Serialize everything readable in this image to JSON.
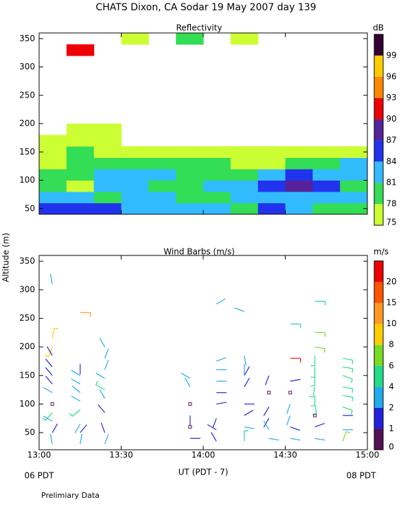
{
  "title": "CHATS Dixon, CA  Sodar  19 May 2007  day 139",
  "ylabel": "Altitude (m)",
  "footnote": "Prelimiary Data",
  "chart_data": [
    {
      "type": "heatmap",
      "title": "Reflectivity",
      "colorbar_label": "dB",
      "x": [
        13.0833,
        13.25,
        13.4167,
        13.5833,
        13.75,
        13.9167,
        14.0833,
        14.25,
        14.4167,
        14.5833,
        14.75,
        14.9167
      ],
      "y": [
        50,
        70,
        90,
        110,
        130,
        150,
        170,
        190,
        330,
        350
      ],
      "z": [
        [
          85,
          85,
          85,
          82,
          82,
          82,
          81,
          80,
          85,
          82,
          79,
          79
        ],
        [
          82,
          82,
          79,
          82,
          82,
          79,
          79,
          82,
          82,
          82,
          82,
          82
        ],
        [
          79,
          76,
          82,
          82,
          79,
          79,
          82,
          82,
          85,
          88,
          85,
          79
        ],
        [
          79,
          79,
          82,
          82,
          82,
          79,
          79,
          79,
          82,
          85,
          82,
          82
        ],
        [
          76,
          79,
          79,
          79,
          79,
          79,
          79,
          76,
          76,
          79,
          79,
          82
        ],
        [
          76,
          79,
          76,
          76,
          76,
          76,
          76,
          76,
          76,
          76,
          76,
          76
        ],
        [
          76,
          76,
          76,
          null,
          null,
          null,
          null,
          null,
          null,
          null,
          null,
          null
        ],
        [
          null,
          76,
          76,
          null,
          null,
          null,
          null,
          null,
          null,
          null,
          null,
          null
        ],
        [
          null,
          91,
          null,
          null,
          null,
          null,
          null,
          null,
          null,
          null,
          null,
          null
        ],
        [
          null,
          null,
          null,
          76,
          null,
          79,
          null,
          76,
          null,
          null,
          null,
          null
        ]
      ],
      "levels": [
        75,
        78,
        81,
        84,
        87,
        90,
        93,
        96,
        99
      ],
      "colors": [
        "#ccff33",
        "#33dd55",
        "#33bbff",
        "#2233ee",
        "#552299",
        "#ee0000",
        "#ff8800",
        "#ffcc00",
        "#330033"
      ],
      "xlim": [
        13,
        15
      ],
      "ylim": [
        40,
        360
      ],
      "yticks": [
        50,
        100,
        150,
        200,
        250,
        300,
        350
      ]
    },
    {
      "type": "barbs",
      "title": "Wind Barbs (m/s)",
      "colorbar_label": "m/s",
      "xlabel": "UT  (PDT - 7)",
      "start_label": "06 PDT",
      "end_label": "08 PDT",
      "x": [
        13.08,
        13.08,
        13.08,
        13.08,
        13.08,
        13.08,
        13.08,
        13.08,
        13.08,
        13.08,
        13.08,
        13.08,
        13.08,
        13.25,
        13.25,
        13.25,
        13.25,
        13.25,
        13.25,
        13.25,
        13.25,
        13.25,
        13.25,
        13.4,
        13.4,
        13.4,
        13.4,
        13.4,
        13.4,
        13.4,
        13.4,
        13.4,
        13.92,
        13.92,
        13.92,
        13.92,
        13.92,
        13.92,
        14.08,
        14.08,
        14.08,
        14.08,
        14.08,
        14.08,
        14.08,
        14.08,
        14.08,
        14.25,
        14.25,
        14.25,
        14.25,
        14.25,
        14.25,
        14.25,
        14.25,
        14.25,
        14.4,
        14.4,
        14.4,
        14.4,
        14.4,
        14.4,
        14.53,
        14.53,
        14.53,
        14.53,
        14.53,
        14.53,
        14.53,
        14.53,
        14.68,
        14.68,
        14.68,
        14.68,
        14.68,
        14.68,
        14.68,
        14.68,
        14.68,
        14.68,
        14.68,
        14.68,
        14.85,
        14.85,
        14.85,
        14.85,
        14.85,
        14.85,
        14.85,
        14.85,
        14.85
      ],
      "y": [
        310,
        215,
        200,
        185,
        165,
        150,
        135,
        120,
        100,
        85,
        70,
        50,
        30,
        260,
        170,
        150,
        135,
        120,
        105,
        90,
        65,
        50,
        30,
        200,
        180,
        160,
        145,
        125,
        110,
        85,
        50,
        30,
        145,
        130,
        100,
        80,
        60,
        40,
        275,
        175,
        160,
        140,
        120,
        100,
        75,
        55,
        35,
        262,
        185,
        170,
        150,
        130,
        100,
        80,
        60,
        35,
        150,
        120,
        95,
        75,
        55,
        40,
        240,
        180,
        140,
        120,
        100,
        80,
        60,
        40,
        280,
        225,
        200,
        185,
        165,
        150,
        130,
        115,
        100,
        80,
        60,
        40,
        180,
        165,
        150,
        130,
        115,
        95,
        80,
        55,
        35
      ],
      "speed": [
        3,
        9,
        9,
        1.5,
        1.5,
        1.5,
        1.5,
        3,
        0.3,
        5,
        3,
        1.5,
        3,
        12,
        1.5,
        3,
        3,
        3,
        3,
        5,
        3,
        1.5,
        3,
        3,
        3,
        3,
        3,
        5,
        3,
        1.5,
        1.5,
        3,
        3,
        3,
        0.3,
        1.5,
        0.3,
        1.5,
        3,
        3,
        3,
        3,
        1.5,
        1.5,
        1.5,
        1.5,
        1.5,
        3,
        3,
        3,
        1.5,
        1.5,
        1.5,
        1.5,
        3,
        5,
        1.5,
        0.3,
        1.5,
        1.5,
        3,
        3,
        5,
        21,
        1.5,
        0.3,
        3,
        3,
        1.5,
        3,
        5,
        7,
        7,
        5,
        5,
        5,
        5,
        5,
        5,
        0.3,
        1.5,
        3,
        5,
        5,
        5,
        5,
        5,
        5,
        1.5,
        3,
        7
      ],
      "direction": [
        350,
        10,
        200,
        330,
        320,
        320,
        320,
        300,
        0,
        220,
        300,
        30,
        350,
        90,
        180,
        300,
        300,
        310,
        300,
        230,
        210,
        40,
        10,
        330,
        20,
        20,
        300,
        300,
        330,
        320,
        340,
        20,
        300,
        330,
        0,
        180,
        0,
        90,
        60,
        70,
        90,
        90,
        90,
        80,
        200,
        300,
        330,
        290,
        170,
        180,
        30,
        30,
        90,
        60,
        100,
        0,
        200,
        0,
        210,
        210,
        330,
        100,
        90,
        90,
        80,
        0,
        200,
        200,
        110,
        100,
        90,
        90,
        100,
        180,
        180,
        180,
        190,
        180,
        170,
        0,
        70,
        100,
        100,
        100,
        110,
        100,
        100,
        110,
        90,
        90,
        20
      ],
      "levels": [
        0,
        1,
        2,
        4,
        6,
        8,
        10,
        15,
        20
      ],
      "colors": [
        "#551155",
        "#2222dd",
        "#22aaee",
        "#22dd88",
        "#77dd22",
        "#ffcc00",
        "#ff9922",
        "#ff5500",
        "#ee0000"
      ],
      "xlim": [
        13,
        15
      ],
      "ylim": [
        20,
        360
      ],
      "xticks": [
        {
          "value": 13,
          "label": "13:00"
        },
        {
          "value": 13.5,
          "label": "13:30"
        },
        {
          "value": 14,
          "label": "14:00"
        },
        {
          "value": 14.5,
          "label": "14:30"
        },
        {
          "value": 15,
          "label": "15:00"
        }
      ],
      "yticks": [
        50,
        100,
        150,
        200,
        250,
        300,
        350
      ]
    }
  ]
}
